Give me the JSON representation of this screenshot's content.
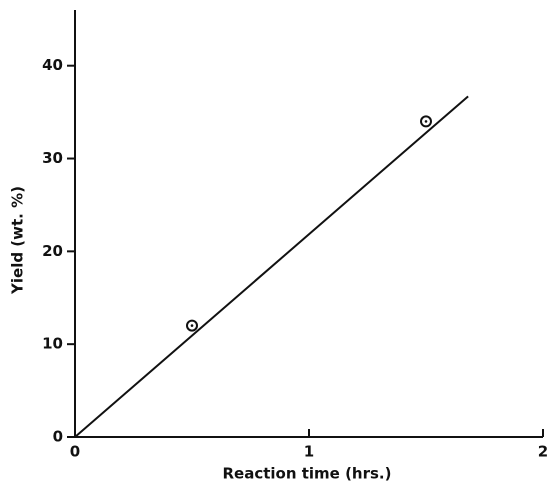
{
  "chart_data": {
    "type": "scatter",
    "x_label": "Reaction time (hrs.)",
    "y_label": "Yield (wt. %)",
    "xlim": [
      0,
      2
    ],
    "xticks": [
      0,
      1,
      2
    ],
    "ylim": [
      0,
      46
    ],
    "yticks": [
      0,
      10,
      20,
      30,
      40
    ],
    "series": [
      {
        "style": "markers",
        "color": "#111111",
        "x": [
          0.5,
          1.5
        ],
        "values": [
          12,
          34
        ]
      },
      {
        "style": "line",
        "color": "#111111",
        "x": [
          0,
          1.68
        ],
        "values": [
          0,
          36.7
        ]
      }
    ]
  }
}
